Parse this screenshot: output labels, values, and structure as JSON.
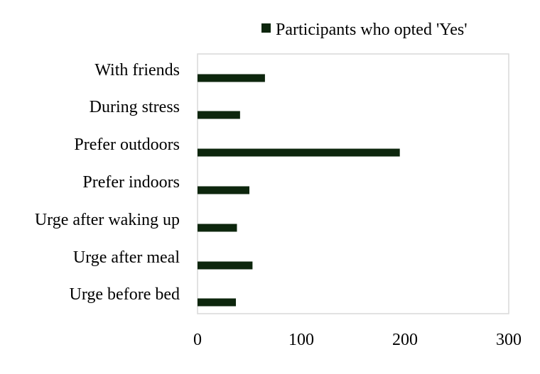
{
  "chart_data": {
    "type": "bar",
    "orientation": "horizontal",
    "categories": [
      "With friends",
      "During stress",
      "Prefer outdoors",
      "Prefer indoors",
      "Urge after waking up",
      "Urge after meal",
      "Urge before bed"
    ],
    "series": [
      {
        "name": "Participants who opted 'Yes'",
        "values": [
          65,
          41,
          195,
          50,
          38,
          53,
          37
        ],
        "color": "#0d260d"
      }
    ],
    "x_ticks": [
      "0",
      "100",
      "200",
      "300"
    ],
    "xlim": [
      0,
      300
    ],
    "grid": false,
    "legend_position": "top-right"
  }
}
